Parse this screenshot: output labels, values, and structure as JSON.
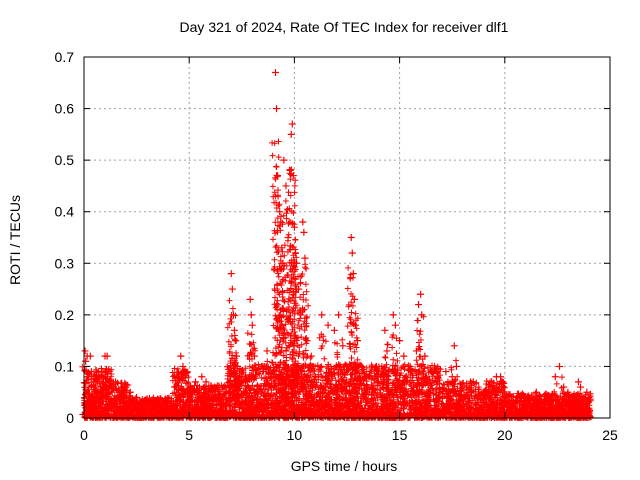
{
  "chart_data": {
    "type": "scatter",
    "title": "Day 321 of 2024, Rate Of TEC Index for receiver dlf1",
    "xlabel": "GPS time / hours",
    "ylabel": "ROTI / TECUs",
    "xlim": [
      0,
      25
    ],
    "ylim": [
      0,
      0.7
    ],
    "xticks": [
      0,
      5,
      10,
      15,
      20,
      25
    ],
    "yticks": [
      0,
      0.1,
      0.2,
      0.3,
      0.4,
      0.5,
      0.6,
      0.7
    ],
    "grid": true,
    "marker": "+",
    "color": "#ff0000",
    "series": [
      {
        "name": "ROTI",
        "points": [
          [
            0.05,
            0.13
          ],
          [
            0.08,
            0.11
          ],
          [
            0.1,
            0.09
          ],
          [
            0.15,
            0.12
          ],
          [
            0.2,
            0.08
          ],
          [
            0.3,
            0.12
          ],
          [
            0.35,
            0.09
          ],
          [
            0.45,
            0.07
          ],
          [
            0.55,
            0.06
          ],
          [
            0.6,
            0.05
          ],
          [
            0.9,
            0.06
          ],
          [
            1.0,
            0.12
          ],
          [
            1.05,
            0.09
          ],
          [
            1.1,
            0.12
          ],
          [
            1.2,
            0.07
          ],
          [
            1.3,
            0.06
          ],
          [
            1.5,
            0.07
          ],
          [
            1.7,
            0.05
          ],
          [
            1.8,
            0.06
          ],
          [
            1.9,
            0.05
          ],
          [
            2.0,
            0.06
          ],
          [
            2.2,
            0.05
          ],
          [
            2.5,
            0.04
          ],
          [
            2.9,
            0.03
          ],
          [
            3.3,
            0.03
          ],
          [
            3.8,
            0.03
          ],
          [
            4.3,
            0.06
          ],
          [
            4.5,
            0.08
          ],
          [
            4.6,
            0.12
          ],
          [
            4.7,
            0.1
          ],
          [
            4.8,
            0.09
          ],
          [
            5.0,
            0.05
          ],
          [
            5.3,
            0.07
          ],
          [
            5.6,
            0.08
          ],
          [
            5.8,
            0.07
          ],
          [
            6.2,
            0.04
          ],
          [
            6.6,
            0.04
          ],
          [
            7.0,
            0.28
          ],
          [
            7.05,
            0.25
          ],
          [
            7.1,
            0.2
          ],
          [
            7.15,
            0.17
          ],
          [
            7.2,
            0.15
          ],
          [
            7.25,
            0.12
          ],
          [
            7.3,
            0.1
          ],
          [
            7.4,
            0.08
          ],
          [
            7.5,
            0.07
          ],
          [
            7.9,
            0.23
          ],
          [
            7.95,
            0.2
          ],
          [
            8.0,
            0.18
          ],
          [
            8.1,
            0.12
          ],
          [
            8.5,
            0.1
          ],
          [
            8.7,
            0.13
          ],
          [
            8.9,
            0.08
          ],
          [
            9.1,
            0.67
          ],
          [
            9.15,
            0.6
          ],
          [
            9.2,
            0.47
          ],
          [
            9.3,
            0.4
          ],
          [
            9.35,
            0.38
          ],
          [
            9.4,
            0.33
          ],
          [
            9.45,
            0.3
          ],
          [
            9.5,
            0.5
          ],
          [
            9.6,
            0.45
          ],
          [
            9.7,
            0.35
          ],
          [
            9.8,
            0.48
          ],
          [
            9.85,
            0.55
          ],
          [
            9.9,
            0.57
          ],
          [
            9.95,
            0.47
          ],
          [
            10.0,
            0.37
          ],
          [
            10.05,
            0.32
          ],
          [
            10.1,
            0.3
          ],
          [
            10.2,
            0.25
          ],
          [
            10.3,
            0.2
          ],
          [
            10.4,
            0.38
          ],
          [
            10.45,
            0.36
          ],
          [
            10.5,
            0.31
          ],
          [
            10.6,
            0.15
          ],
          [
            10.8,
            0.12
          ],
          [
            11.0,
            0.08
          ],
          [
            11.3,
            0.2
          ],
          [
            11.6,
            0.18
          ],
          [
            11.9,
            0.17
          ],
          [
            12.1,
            0.2
          ],
          [
            12.3,
            0.14
          ],
          [
            12.5,
            0.1
          ],
          [
            12.7,
            0.35
          ],
          [
            12.75,
            0.32
          ],
          [
            12.8,
            0.28
          ],
          [
            12.85,
            0.23
          ],
          [
            12.9,
            0.18
          ],
          [
            13.0,
            0.15
          ],
          [
            13.2,
            0.1
          ],
          [
            13.6,
            0.09
          ],
          [
            13.9,
            0.1
          ],
          [
            14.1,
            0.08
          ],
          [
            14.3,
            0.17
          ],
          [
            14.4,
            0.13
          ],
          [
            14.7,
            0.2
          ],
          [
            14.8,
            0.18
          ],
          [
            15.0,
            0.15
          ],
          [
            15.2,
            0.12
          ],
          [
            15.5,
            0.1
          ],
          [
            15.8,
            0.13
          ],
          [
            15.9,
            0.22
          ],
          [
            16.0,
            0.24
          ],
          [
            16.05,
            0.2
          ],
          [
            16.2,
            0.12
          ],
          [
            16.5,
            0.09
          ],
          [
            16.8,
            0.08
          ],
          [
            17.2,
            0.09
          ],
          [
            17.5,
            0.08
          ],
          [
            17.6,
            0.14
          ],
          [
            17.7,
            0.1
          ],
          [
            18.0,
            0.06
          ],
          [
            18.5,
            0.07
          ],
          [
            19.0,
            0.05
          ],
          [
            19.3,
            0.06
          ],
          [
            19.6,
            0.08
          ],
          [
            19.8,
            0.08
          ],
          [
            20.1,
            0.04
          ],
          [
            20.5,
            0.03
          ],
          [
            21.0,
            0.03
          ],
          [
            21.5,
            0.05
          ],
          [
            22.0,
            0.04
          ],
          [
            22.4,
            0.08
          ],
          [
            22.6,
            0.1
          ],
          [
            22.8,
            0.06
          ],
          [
            23.0,
            0.05
          ],
          [
            23.3,
            0.04
          ],
          [
            23.5,
            0.07
          ],
          [
            23.6,
            0.06
          ],
          [
            23.9,
            0.05
          ],
          [
            24.0,
            0.04
          ]
        ]
      }
    ]
  }
}
